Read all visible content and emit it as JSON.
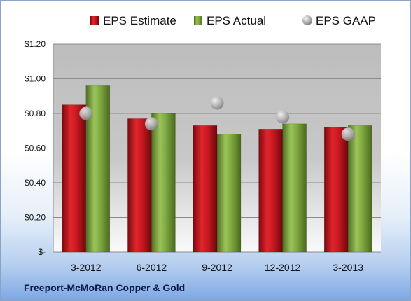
{
  "chart_data": {
    "type": "bar",
    "categories": [
      "3-2012",
      "6-2012",
      "9-2012",
      "12-2012",
      "3-2013"
    ],
    "series": [
      {
        "name": "EPS Estimate",
        "values": [
          0.85,
          0.77,
          0.73,
          0.71,
          0.72
        ],
        "color": "#c0141c",
        "kind": "bar"
      },
      {
        "name": "EPS Actual",
        "values": [
          0.96,
          0.8,
          0.68,
          0.74,
          0.73
        ],
        "color": "#78a33a",
        "kind": "bar"
      },
      {
        "name": "EPS GAAP",
        "values": [
          0.8,
          0.74,
          0.86,
          0.78,
          0.68
        ],
        "color": "#a9a9a9",
        "kind": "marker"
      }
    ],
    "ylim": [
      0,
      1.2
    ],
    "yticks": [
      0,
      0.2,
      0.4,
      0.6,
      0.8,
      1.0,
      1.2
    ],
    "ytick_labels": [
      "$-",
      "$0.20",
      "$0.40",
      "$0.60",
      "$0.80",
      "$1.00",
      "$1.20"
    ],
    "grid": true,
    "legend": "top"
  },
  "footer": {
    "company": "Freeport-McMoRan Copper & Gold"
  }
}
